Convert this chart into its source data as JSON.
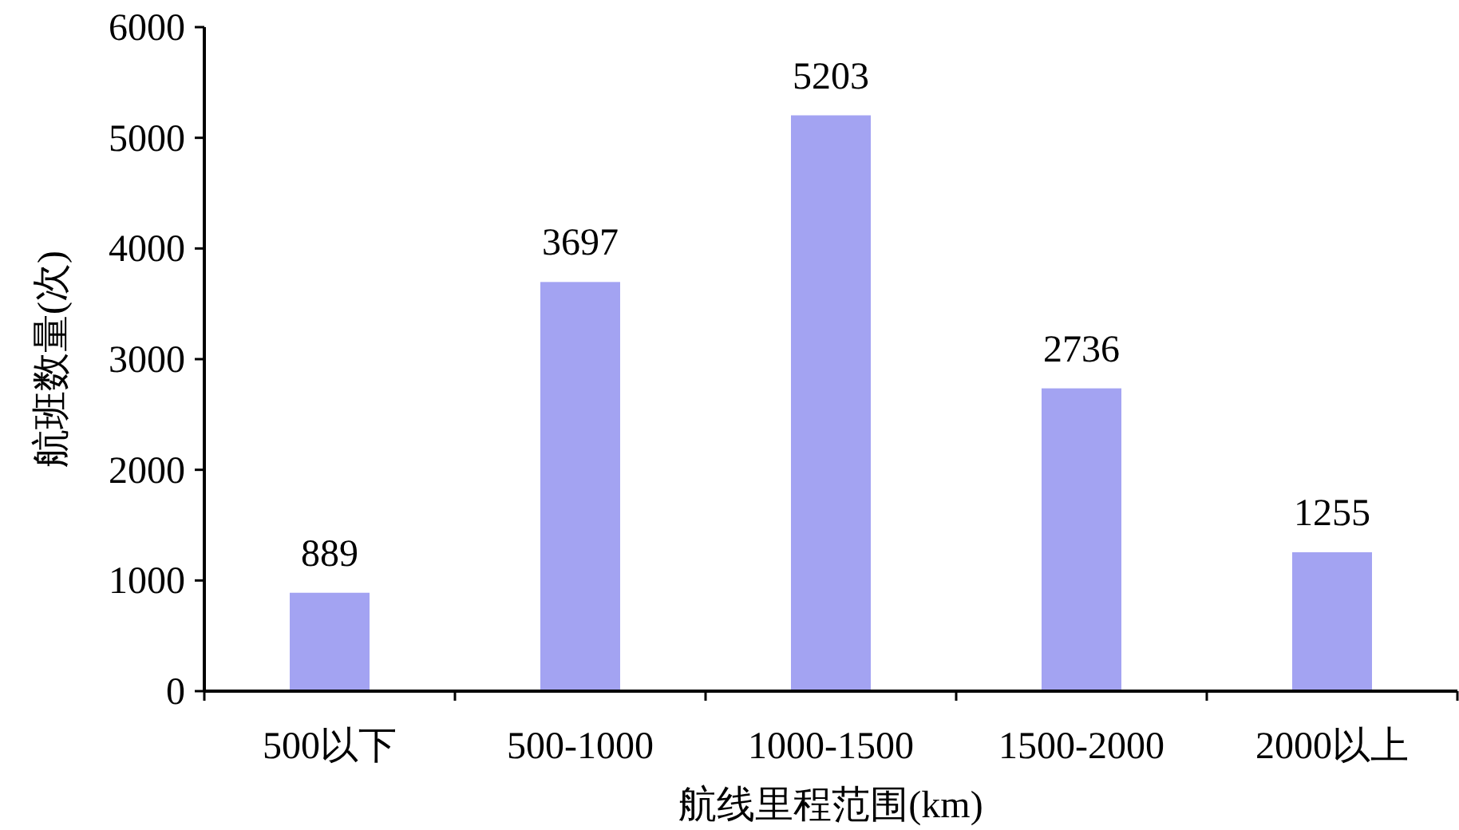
{
  "chart_data": {
    "type": "bar",
    "xlabel": "航线里程范围(km)",
    "ylabel": "航班数量(次)",
    "categories": [
      "500以下",
      "500-1000",
      "1000-1500",
      "1500-2000",
      "2000以上"
    ],
    "values": [
      889,
      3697,
      5203,
      2736,
      1255
    ],
    "color": "#a3a3f2",
    "ylim": [
      0,
      6000
    ],
    "yticks": [
      0,
      1000,
      2000,
      3000,
      4000,
      5000,
      6000
    ],
    "grid": false,
    "data_labels": true
  }
}
